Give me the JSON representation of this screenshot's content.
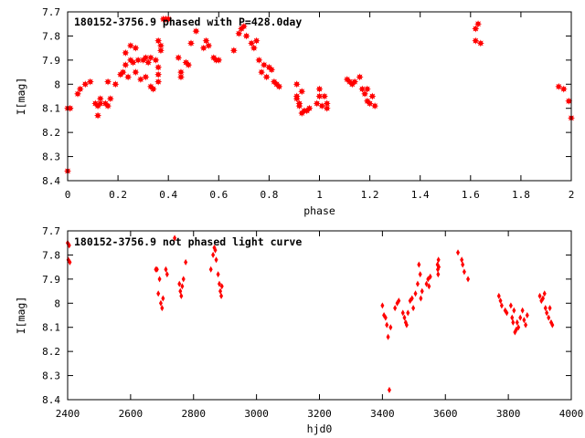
{
  "chart_data": [
    {
      "type": "scatter",
      "title": "180152-3756.9 phased with P=428.0day",
      "xlabel": "phase",
      "ylabel": "I[mag]",
      "xlim": [
        0,
        2
      ],
      "ylim": [
        8.4,
        7.7
      ],
      "y_reversed": true,
      "grid": false,
      "marker_color": "#ff0000",
      "marker": "filled-star",
      "xticks": [
        0,
        0.2,
        0.4,
        0.6,
        0.8,
        1,
        1.2,
        1.4,
        1.6,
        1.8,
        2
      ],
      "xtick_labels": [
        "0",
        "0.2",
        "0.4",
        "0.6",
        "0.8",
        "1",
        "1.2",
        "1.4",
        "1.6",
        "1.8",
        "2"
      ],
      "yticks": [
        7.7,
        7.8,
        7.9,
        8,
        8.1,
        8.2,
        8.3,
        8.4
      ],
      "ytick_labels": [
        "7.7",
        "7.8",
        "7.9",
        "8",
        "8.1",
        "8.2",
        "8.3",
        "8.4"
      ],
      "points": [
        [
          0.0,
          8.1
        ],
        [
          0.0,
          8.36
        ],
        [
          0.01,
          8.1
        ],
        [
          0.04,
          8.04
        ],
        [
          0.05,
          8.02
        ],
        [
          0.07,
          8.0
        ],
        [
          0.09,
          7.99
        ],
        [
          0.11,
          8.08
        ],
        [
          0.12,
          8.09
        ],
        [
          0.12,
          8.13
        ],
        [
          0.13,
          8.06
        ],
        [
          0.13,
          8.08
        ],
        [
          0.15,
          8.08
        ],
        [
          0.16,
          8.09
        ],
        [
          0.16,
          7.99
        ],
        [
          0.17,
          8.06
        ],
        [
          0.19,
          8.0
        ],
        [
          0.21,
          7.96
        ],
        [
          0.22,
          7.95
        ],
        [
          0.23,
          7.92
        ],
        [
          0.23,
          7.87
        ],
        [
          0.24,
          7.97
        ],
        [
          0.25,
          7.9
        ],
        [
          0.25,
          7.84
        ],
        [
          0.26,
          7.91
        ],
        [
          0.27,
          7.85
        ],
        [
          0.27,
          7.95
        ],
        [
          0.28,
          7.9
        ],
        [
          0.29,
          7.98
        ],
        [
          0.3,
          7.9
        ],
        [
          0.31,
          7.89
        ],
        [
          0.31,
          7.97
        ],
        [
          0.32,
          7.91
        ],
        [
          0.33,
          8.01
        ],
        [
          0.33,
          7.89
        ],
        [
          0.34,
          8.02
        ],
        [
          0.35,
          7.9
        ],
        [
          0.36,
          7.93
        ],
        [
          0.36,
          7.96
        ],
        [
          0.36,
          7.99
        ],
        [
          0.36,
          7.82
        ],
        [
          0.37,
          7.86
        ],
        [
          0.37,
          7.84
        ],
        [
          0.38,
          7.73
        ],
        [
          0.39,
          7.73
        ],
        [
          0.4,
          7.73
        ],
        [
          0.44,
          7.89
        ],
        [
          0.45,
          7.95
        ],
        [
          0.45,
          7.97
        ],
        [
          0.47,
          7.91
        ],
        [
          0.48,
          7.92
        ],
        [
          0.49,
          7.83
        ],
        [
          0.51,
          7.78
        ],
        [
          0.54,
          7.85
        ],
        [
          0.55,
          7.82
        ],
        [
          0.56,
          7.84
        ],
        [
          0.58,
          7.89
        ],
        [
          0.59,
          7.9
        ],
        [
          0.6,
          7.9
        ],
        [
          0.66,
          7.86
        ],
        [
          0.68,
          7.79
        ],
        [
          0.69,
          7.77
        ],
        [
          0.7,
          7.76
        ],
        [
          0.71,
          7.8
        ],
        [
          0.73,
          7.83
        ],
        [
          0.74,
          7.85
        ],
        [
          0.75,
          7.82
        ],
        [
          0.76,
          7.9
        ],
        [
          0.77,
          7.95
        ],
        [
          0.78,
          7.92
        ],
        [
          0.79,
          7.97
        ],
        [
          0.8,
          7.93
        ],
        [
          0.81,
          7.94
        ],
        [
          0.82,
          7.99
        ],
        [
          0.83,
          8.0
        ],
        [
          0.84,
          8.01
        ],
        [
          0.91,
          8.05
        ],
        [
          0.91,
          8.06
        ],
        [
          0.91,
          8.0
        ],
        [
          0.92,
          8.09
        ],
        [
          0.92,
          8.08
        ],
        [
          0.93,
          8.12
        ],
        [
          0.93,
          8.03
        ],
        [
          0.94,
          8.11
        ],
        [
          0.95,
          8.11
        ],
        [
          0.96,
          8.1
        ],
        [
          0.99,
          8.08
        ],
        [
          1.0,
          8.05
        ],
        [
          1.0,
          8.02
        ],
        [
          1.01,
          8.09
        ],
        [
          1.02,
          8.05
        ],
        [
          1.03,
          8.08
        ],
        [
          1.03,
          8.1
        ],
        [
          1.11,
          7.98
        ],
        [
          1.12,
          7.99
        ],
        [
          1.13,
          8.0
        ],
        [
          1.14,
          7.99
        ],
        [
          1.16,
          7.97
        ],
        [
          1.17,
          8.02
        ],
        [
          1.18,
          8.04
        ],
        [
          1.19,
          8.07
        ],
        [
          1.19,
          8.02
        ],
        [
          1.2,
          8.08
        ],
        [
          1.21,
          8.05
        ],
        [
          1.22,
          8.09
        ],
        [
          1.62,
          7.82
        ],
        [
          1.62,
          7.77
        ],
        [
          1.63,
          7.75
        ],
        [
          1.64,
          7.83
        ],
        [
          1.95,
          8.01
        ],
        [
          1.97,
          8.02
        ],
        [
          1.99,
          8.07
        ],
        [
          2.0,
          8.14
        ]
      ]
    },
    {
      "type": "scatter",
      "title": "180152-3756.9 not phased light curve",
      "xlabel": "hjd0",
      "ylabel": "I[mag]",
      "xlim": [
        2400,
        4000
      ],
      "ylim": [
        8.4,
        7.7
      ],
      "y_reversed": true,
      "grid": false,
      "marker_color": "#ff0000",
      "marker": "filled-diamond",
      "xticks": [
        2400,
        2600,
        2800,
        3000,
        3200,
        3400,
        3600,
        3800,
        4000
      ],
      "xtick_labels": [
        "2400",
        "2600",
        "2800",
        "3000",
        "3200",
        "3400",
        "3600",
        "3800",
        "4000"
      ],
      "yticks": [
        7.7,
        7.8,
        7.9,
        8,
        8.1,
        8.2,
        8.3,
        8.4
      ],
      "ytick_labels": [
        "7.7",
        "7.8",
        "7.9",
        "8",
        "8.1",
        "8.2",
        "8.3",
        "8.4"
      ],
      "points": [
        [
          2400,
          7.75
        ],
        [
          2402,
          7.82
        ],
        [
          2405,
          7.76
        ],
        [
          2407,
          7.83
        ],
        [
          2680,
          7.86
        ],
        [
          2684,
          7.86
        ],
        [
          2688,
          7.96
        ],
        [
          2692,
          7.9
        ],
        [
          2696,
          8.0
        ],
        [
          2700,
          8.02
        ],
        [
          2703,
          7.98
        ],
        [
          2712,
          7.86
        ],
        [
          2716,
          7.88
        ],
        [
          2740,
          7.73
        ],
        [
          2755,
          7.92
        ],
        [
          2758,
          7.95
        ],
        [
          2761,
          7.97
        ],
        [
          2764,
          7.93
        ],
        [
          2768,
          7.9
        ],
        [
          2775,
          7.83
        ],
        [
          2855,
          7.86
        ],
        [
          2862,
          7.8
        ],
        [
          2866,
          7.77
        ],
        [
          2869,
          7.78
        ],
        [
          2872,
          7.82
        ],
        [
          2878,
          7.88
        ],
        [
          2882,
          7.92
        ],
        [
          2885,
          7.95
        ],
        [
          2888,
          7.97
        ],
        [
          2890,
          7.93
        ],
        [
          3400,
          8.01
        ],
        [
          3405,
          8.05
        ],
        [
          3410,
          8.06
        ],
        [
          3414,
          8.09
        ],
        [
          3418,
          8.14
        ],
        [
          3422,
          8.36
        ],
        [
          3426,
          8.1
        ],
        [
          3440,
          8.02
        ],
        [
          3447,
          8.0
        ],
        [
          3452,
          7.99
        ],
        [
          3465,
          8.04
        ],
        [
          3470,
          8.06
        ],
        [
          3474,
          8.08
        ],
        [
          3477,
          8.09
        ],
        [
          3481,
          8.04
        ],
        [
          3488,
          7.99
        ],
        [
          3494,
          7.98
        ],
        [
          3498,
          8.02
        ],
        [
          3505,
          7.96
        ],
        [
          3512,
          7.92
        ],
        [
          3516,
          7.84
        ],
        [
          3520,
          7.88
        ],
        [
          3522,
          7.98
        ],
        [
          3526,
          7.95
        ],
        [
          3540,
          7.92
        ],
        [
          3545,
          7.9
        ],
        [
          3548,
          7.93
        ],
        [
          3552,
          7.89
        ],
        [
          3575,
          7.84
        ],
        [
          3576,
          7.86
        ],
        [
          3577,
          7.88
        ],
        [
          3578,
          7.82
        ],
        [
          3579,
          7.85
        ],
        [
          3640,
          7.79
        ],
        [
          3652,
          7.82
        ],
        [
          3655,
          7.84
        ],
        [
          3660,
          7.87
        ],
        [
          3672,
          7.9
        ],
        [
          3770,
          7.97
        ],
        [
          3775,
          7.99
        ],
        [
          3779,
          8.01
        ],
        [
          3790,
          8.03
        ],
        [
          3795,
          8.04
        ],
        [
          3808,
          8.01
        ],
        [
          3812,
          8.06
        ],
        [
          3815,
          8.08
        ],
        [
          3818,
          8.03
        ],
        [
          3821,
          8.12
        ],
        [
          3825,
          8.11
        ],
        [
          3828,
          8.08
        ],
        [
          3832,
          8.1
        ],
        [
          3838,
          8.06
        ],
        [
          3845,
          8.03
        ],
        [
          3850,
          8.07
        ],
        [
          3855,
          8.09
        ],
        [
          3860,
          8.05
        ],
        [
          3900,
          7.97
        ],
        [
          3905,
          7.99
        ],
        [
          3910,
          7.98
        ],
        [
          3915,
          7.96
        ],
        [
          3918,
          8.02
        ],
        [
          3922,
          8.04
        ],
        [
          3928,
          8.06
        ],
        [
          3932,
          8.02
        ],
        [
          3936,
          8.08
        ],
        [
          3940,
          8.09
        ]
      ]
    }
  ]
}
